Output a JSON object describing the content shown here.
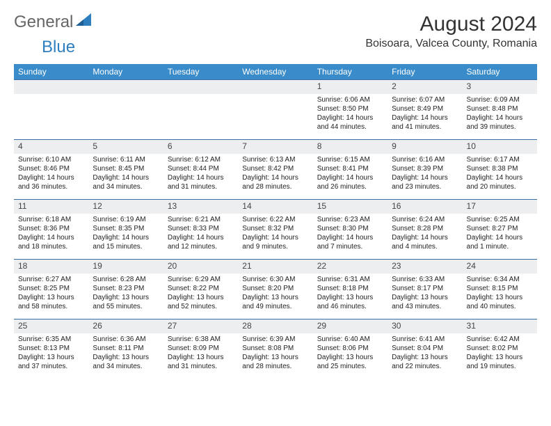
{
  "brand": {
    "part1": "General",
    "part2": "Blue"
  },
  "title": "August 2024",
  "location": "Boisoara, Valcea County, Romania",
  "colors": {
    "header_bg": "#3a8bc9",
    "header_text": "#ffffff",
    "cell_border": "#3a6fa5",
    "daynum_bg": "#eceef0",
    "brand_gray": "#666666",
    "brand_blue": "#2f7fbf"
  },
  "typography": {
    "title_fontsize": 30,
    "location_fontsize": 16,
    "header_fontsize": 12,
    "daynum_fontsize": 12,
    "body_fontsize": 10
  },
  "layout": {
    "columns": 7,
    "rows": 5,
    "first_weekday_index": 4
  },
  "columns": [
    "Sunday",
    "Monday",
    "Tuesday",
    "Wednesday",
    "Thursday",
    "Friday",
    "Saturday"
  ],
  "days": [
    {
      "n": "1",
      "sr": "6:06 AM",
      "ss": "8:50 PM",
      "dl": "14 hours and 44 minutes."
    },
    {
      "n": "2",
      "sr": "6:07 AM",
      "ss": "8:49 PM",
      "dl": "14 hours and 41 minutes."
    },
    {
      "n": "3",
      "sr": "6:09 AM",
      "ss": "8:48 PM",
      "dl": "14 hours and 39 minutes."
    },
    {
      "n": "4",
      "sr": "6:10 AM",
      "ss": "8:46 PM",
      "dl": "14 hours and 36 minutes."
    },
    {
      "n": "5",
      "sr": "6:11 AM",
      "ss": "8:45 PM",
      "dl": "14 hours and 34 minutes."
    },
    {
      "n": "6",
      "sr": "6:12 AM",
      "ss": "8:44 PM",
      "dl": "14 hours and 31 minutes."
    },
    {
      "n": "7",
      "sr": "6:13 AM",
      "ss": "8:42 PM",
      "dl": "14 hours and 28 minutes."
    },
    {
      "n": "8",
      "sr": "6:15 AM",
      "ss": "8:41 PM",
      "dl": "14 hours and 26 minutes."
    },
    {
      "n": "9",
      "sr": "6:16 AM",
      "ss": "8:39 PM",
      "dl": "14 hours and 23 minutes."
    },
    {
      "n": "10",
      "sr": "6:17 AM",
      "ss": "8:38 PM",
      "dl": "14 hours and 20 minutes."
    },
    {
      "n": "11",
      "sr": "6:18 AM",
      "ss": "8:36 PM",
      "dl": "14 hours and 18 minutes."
    },
    {
      "n": "12",
      "sr": "6:19 AM",
      "ss": "8:35 PM",
      "dl": "14 hours and 15 minutes."
    },
    {
      "n": "13",
      "sr": "6:21 AM",
      "ss": "8:33 PM",
      "dl": "14 hours and 12 minutes."
    },
    {
      "n": "14",
      "sr": "6:22 AM",
      "ss": "8:32 PM",
      "dl": "14 hours and 9 minutes."
    },
    {
      "n": "15",
      "sr": "6:23 AM",
      "ss": "8:30 PM",
      "dl": "14 hours and 7 minutes."
    },
    {
      "n": "16",
      "sr": "6:24 AM",
      "ss": "8:28 PM",
      "dl": "14 hours and 4 minutes."
    },
    {
      "n": "17",
      "sr": "6:25 AM",
      "ss": "8:27 PM",
      "dl": "14 hours and 1 minute."
    },
    {
      "n": "18",
      "sr": "6:27 AM",
      "ss": "8:25 PM",
      "dl": "13 hours and 58 minutes."
    },
    {
      "n": "19",
      "sr": "6:28 AM",
      "ss": "8:23 PM",
      "dl": "13 hours and 55 minutes."
    },
    {
      "n": "20",
      "sr": "6:29 AM",
      "ss": "8:22 PM",
      "dl": "13 hours and 52 minutes."
    },
    {
      "n": "21",
      "sr": "6:30 AM",
      "ss": "8:20 PM",
      "dl": "13 hours and 49 minutes."
    },
    {
      "n": "22",
      "sr": "6:31 AM",
      "ss": "8:18 PM",
      "dl": "13 hours and 46 minutes."
    },
    {
      "n": "23",
      "sr": "6:33 AM",
      "ss": "8:17 PM",
      "dl": "13 hours and 43 minutes."
    },
    {
      "n": "24",
      "sr": "6:34 AM",
      "ss": "8:15 PM",
      "dl": "13 hours and 40 minutes."
    },
    {
      "n": "25",
      "sr": "6:35 AM",
      "ss": "8:13 PM",
      "dl": "13 hours and 37 minutes."
    },
    {
      "n": "26",
      "sr": "6:36 AM",
      "ss": "8:11 PM",
      "dl": "13 hours and 34 minutes."
    },
    {
      "n": "27",
      "sr": "6:38 AM",
      "ss": "8:09 PM",
      "dl": "13 hours and 31 minutes."
    },
    {
      "n": "28",
      "sr": "6:39 AM",
      "ss": "8:08 PM",
      "dl": "13 hours and 28 minutes."
    },
    {
      "n": "29",
      "sr": "6:40 AM",
      "ss": "8:06 PM",
      "dl": "13 hours and 25 minutes."
    },
    {
      "n": "30",
      "sr": "6:41 AM",
      "ss": "8:04 PM",
      "dl": "13 hours and 22 minutes."
    },
    {
      "n": "31",
      "sr": "6:42 AM",
      "ss": "8:02 PM",
      "dl": "13 hours and 19 minutes."
    }
  ],
  "labels": {
    "sunrise": "Sunrise:",
    "sunset": "Sunset:",
    "daylight": "Daylight:"
  }
}
